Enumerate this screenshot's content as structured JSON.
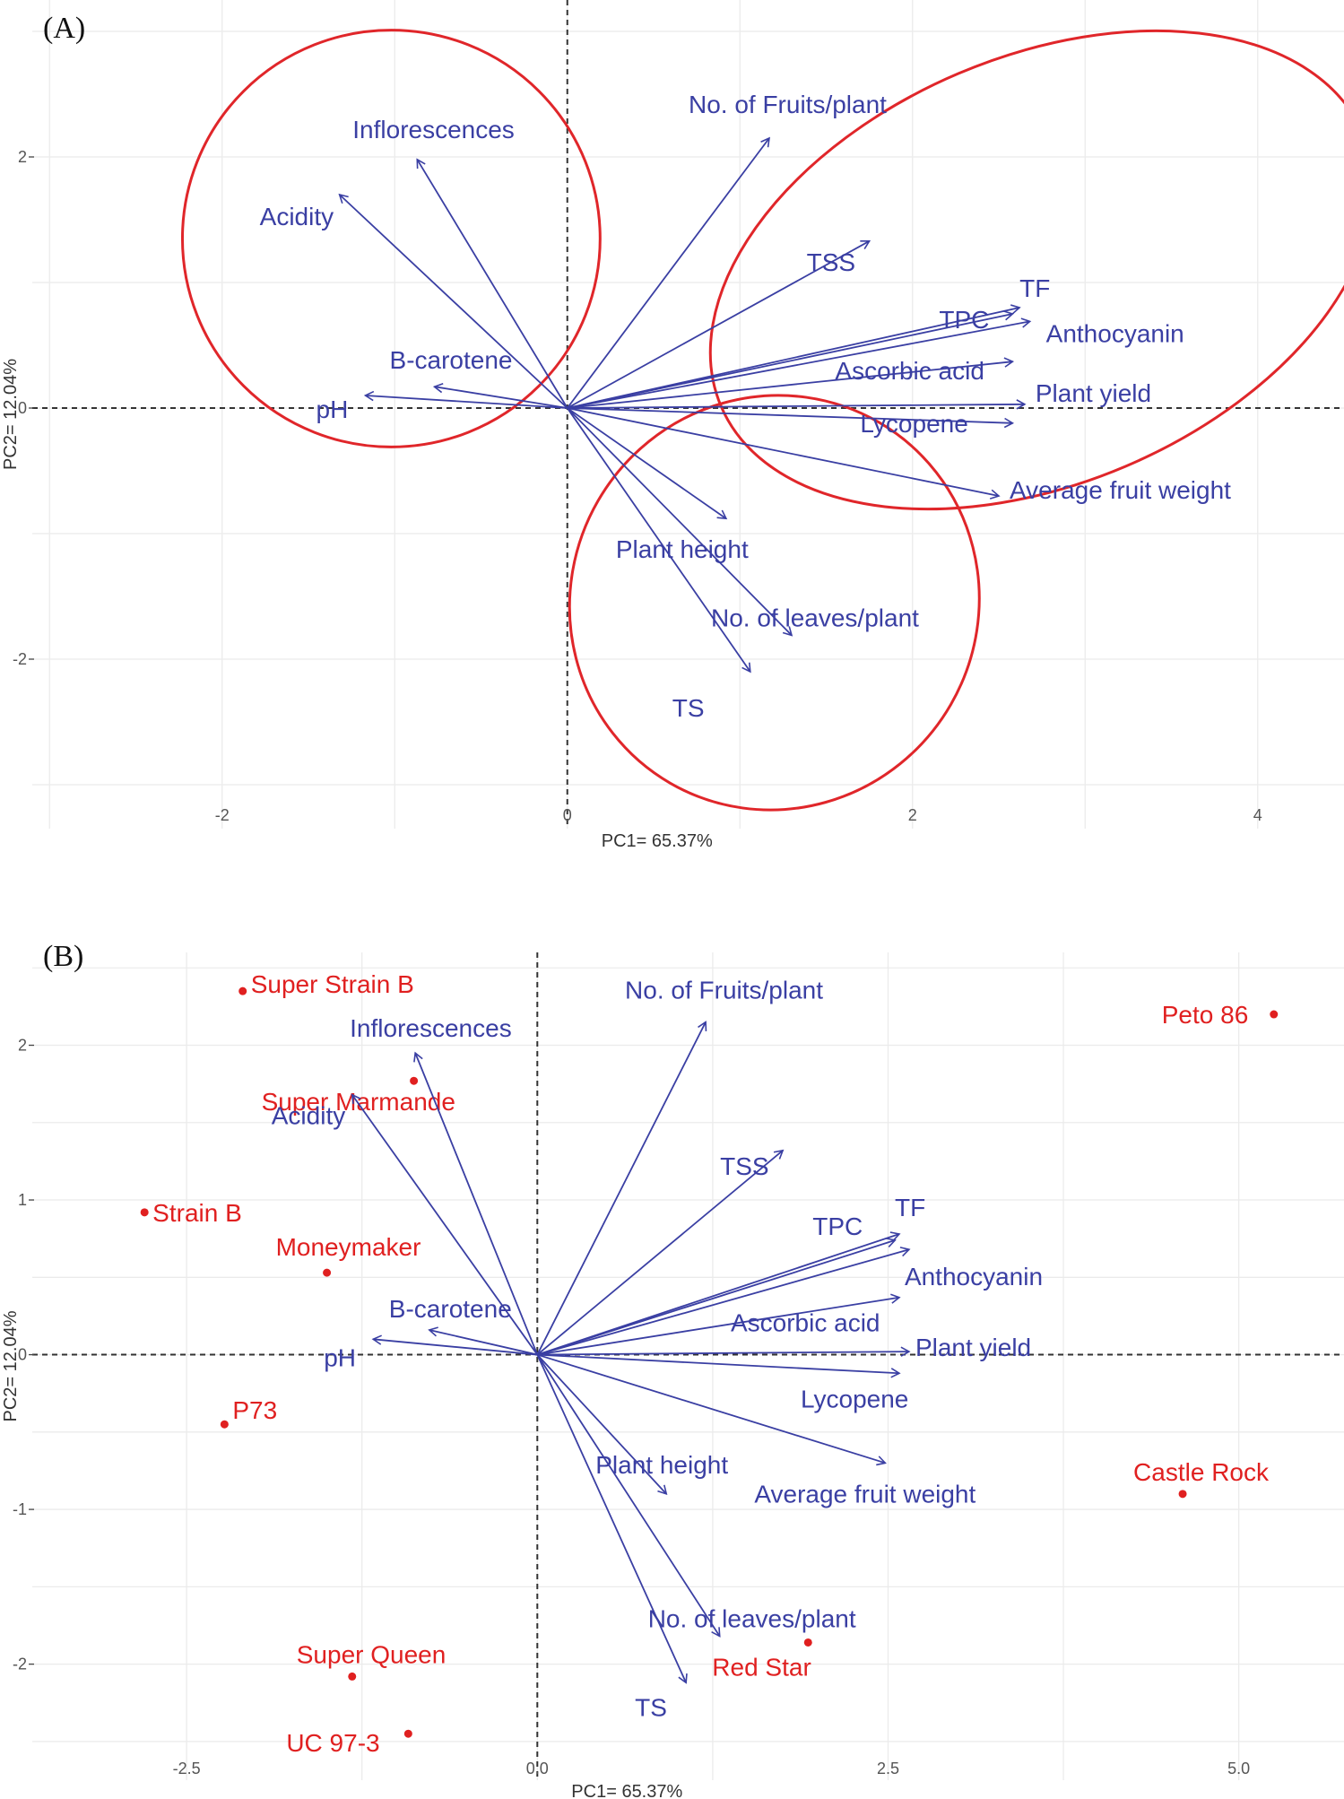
{
  "colors": {
    "variable": "#3a3fa3",
    "observation": "#e02020",
    "ellipse": "#e0262a",
    "grid": "#ebebeb",
    "zero": "#333333"
  },
  "chart_data": [
    {
      "panel": "(A)",
      "type": "biplot",
      "xlabel": "PC1= 65.37%",
      "ylabel": "PC2= 12.04%",
      "xlim": [
        -3.1,
        4.5
      ],
      "ylim": [
        -3.35,
        3.25
      ],
      "xticks": [
        -2,
        0,
        2,
        4
      ],
      "xtick_labels": [
        "-2",
        "0",
        "2",
        "4"
      ],
      "yticks": [
        -2,
        0,
        2
      ],
      "ytick_labels": [
        "-2",
        "0",
        "2"
      ],
      "variables": [
        {
          "name": "No. of Fruits/plant",
          "x": 1.17,
          "y": 2.15
        },
        {
          "name": "Inflorescences",
          "x": -0.87,
          "y": 1.98
        },
        {
          "name": "Acidity",
          "x": -1.32,
          "y": 1.7
        },
        {
          "name": "TSS",
          "x": 1.75,
          "y": 1.33
        },
        {
          "name": "TF",
          "x": 2.62,
          "y": 0.8
        },
        {
          "name": "TPC",
          "x": 2.58,
          "y": 0.75
        },
        {
          "name": "Anthocyanin",
          "x": 2.68,
          "y": 0.69
        },
        {
          "name": "Ascorbic acid",
          "x": 2.58,
          "y": 0.37
        },
        {
          "name": "Plant yield",
          "x": 2.65,
          "y": 0.03
        },
        {
          "name": "Lycopene",
          "x": 2.58,
          "y": -0.12
        },
        {
          "name": "Average fruit weight",
          "x": 2.5,
          "y": -0.7
        },
        {
          "name": "B-carotene",
          "x": -0.77,
          "y": 0.17
        },
        {
          "name": "pH",
          "x": -1.17,
          "y": 0.1
        },
        {
          "name": "Plant height",
          "x": 0.92,
          "y": -0.88
        },
        {
          "name": "No. of leaves/plant",
          "x": 1.3,
          "y": -1.81
        },
        {
          "name": "TS",
          "x": 1.06,
          "y": -2.1
        }
      ],
      "ellipses": [
        {
          "cx": -1.02,
          "cy": 1.35,
          "rx": 1.21,
          "ry": 1.66,
          "angle": 0
        },
        {
          "cx": 2.75,
          "cy": 1.1,
          "rx": 2.02,
          "ry": 1.7,
          "angle": 23
        },
        {
          "cx": 1.2,
          "cy": -1.55,
          "rx": 1.18,
          "ry": 1.66,
          "angle": -30
        }
      ]
    },
    {
      "panel": "(B)",
      "type": "biplot",
      "xlabel": "PC1= 65.37%",
      "ylabel": "PC2= 12.04%",
      "xlim": [
        -3.6,
        5.75
      ],
      "ylim": [
        -2.75,
        2.6
      ],
      "xticks": [
        -2.5,
        0,
        2.5,
        5
      ],
      "xtick_labels": [
        "-2.5",
        "0.0",
        "2.5",
        "5.0"
      ],
      "yticks": [
        -2,
        -1,
        0,
        1,
        2
      ],
      "ytick_labels": [
        "-2",
        "-1",
        "0",
        "1",
        "2"
      ],
      "variables": [
        {
          "name": "No. of Fruits/plant",
          "x": 1.2,
          "y": 2.15
        },
        {
          "name": "Inflorescences",
          "x": -0.87,
          "y": 1.95
        },
        {
          "name": "Acidity",
          "x": -1.32,
          "y": 1.68
        },
        {
          "name": "TSS",
          "x": 1.75,
          "y": 1.32
        },
        {
          "name": "TF",
          "x": 2.58,
          "y": 0.78
        },
        {
          "name": "TPC",
          "x": 2.55,
          "y": 0.74
        },
        {
          "name": "Anthocyanin",
          "x": 2.65,
          "y": 0.68
        },
        {
          "name": "Ascorbic acid",
          "x": 2.58,
          "y": 0.37
        },
        {
          "name": "Plant yield",
          "x": 2.65,
          "y": 0.02
        },
        {
          "name": "Lycopene",
          "x": 2.58,
          "y": -0.12
        },
        {
          "name": "Average fruit weight",
          "x": 2.48,
          "y": -0.7
        },
        {
          "name": "B-carotene",
          "x": -0.77,
          "y": 0.16
        },
        {
          "name": "pH",
          "x": -1.17,
          "y": 0.1
        },
        {
          "name": "Plant height",
          "x": 0.92,
          "y": -0.9
        },
        {
          "name": "No. of leaves/plant",
          "x": 1.3,
          "y": -1.82
        },
        {
          "name": "TS",
          "x": 1.06,
          "y": -2.12
        }
      ],
      "observations": [
        {
          "name": "Super Strain B",
          "x": -2.1,
          "y": 2.35
        },
        {
          "name": "Peto 86",
          "x": 5.25,
          "y": 2.2
        },
        {
          "name": "Super Marmande",
          "x": -0.88,
          "y": 1.77
        },
        {
          "name": "Strain B",
          "x": -2.8,
          "y": 0.92
        },
        {
          "name": "Moneymaker",
          "x": -1.5,
          "y": 0.53
        },
        {
          "name": "P73",
          "x": -2.23,
          "y": -0.45
        },
        {
          "name": "Castle Rock",
          "x": 4.6,
          "y": -0.9
        },
        {
          "name": "Red Star",
          "x": 1.93,
          "y": -1.86
        },
        {
          "name": "Super Queen",
          "x": -1.32,
          "y": -2.08
        },
        {
          "name": "UC 97-3",
          "x": -0.92,
          "y": -2.45
        }
      ]
    }
  ]
}
